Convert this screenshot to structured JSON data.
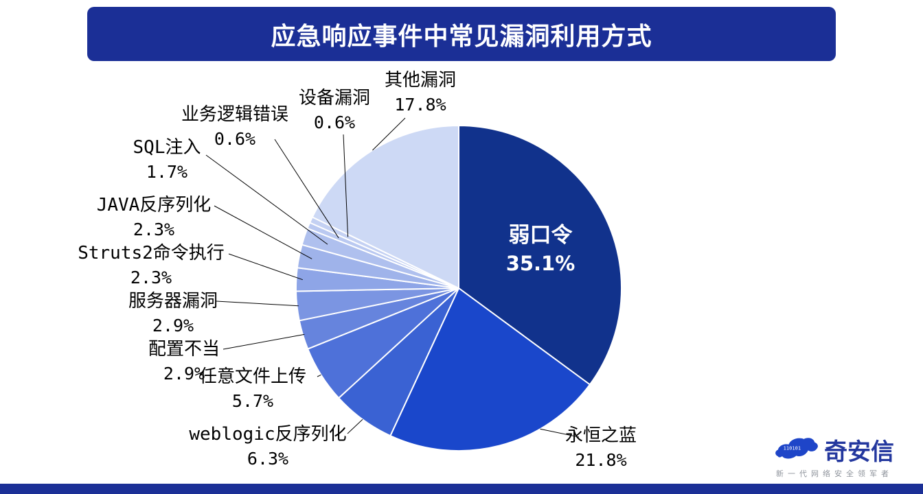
{
  "header": {
    "title": "应急响应事件中常见漏洞利用方式"
  },
  "chart_data": {
    "type": "pie",
    "title": "应急响应事件中常见漏洞利用方式",
    "unit": "percent",
    "start_angle_deg": 0,
    "direction": "clockwise",
    "legend": "none",
    "slices": [
      {
        "label": "弱口令",
        "value": 35.1,
        "display": "35.1%",
        "color": "#11328c"
      },
      {
        "label": "永恒之蓝",
        "value": 21.8,
        "display": "21.8%",
        "color": "#1a47cb"
      },
      {
        "label": "weblogic反序列化",
        "value": 6.3,
        "display": "6.3%",
        "color": "#3a62d3"
      },
      {
        "label": "任意文件上传",
        "value": 5.7,
        "display": "5.7%",
        "color": "#4e71d9"
      },
      {
        "label": "配置不当",
        "value": 2.9,
        "display": "2.9%",
        "color": "#6684dd"
      },
      {
        "label": "服务器漏洞",
        "value": 2.9,
        "display": "2.9%",
        "color": "#7b95e2"
      },
      {
        "label": "Struts2命令执行",
        "value": 2.3,
        "display": "2.3%",
        "color": "#8ea5e7"
      },
      {
        "label": "JAVA反序列化",
        "value": 2.3,
        "display": "2.3%",
        "color": "#9fb3ea"
      },
      {
        "label": "SQL注入",
        "value": 1.7,
        "display": "1.7%",
        "color": "#afc0ee"
      },
      {
        "label": "业务逻辑错误",
        "value": 0.6,
        "display": "0.6%",
        "color": "#bac9f1"
      },
      {
        "label": "设备漏洞",
        "value": 0.6,
        "display": "0.6%",
        "color": "#c4d1f3"
      },
      {
        "label": "其他漏洞",
        "value": 17.8,
        "display": "17.8%",
        "color": "#cdd9f5"
      }
    ]
  },
  "logo": {
    "brand": "奇安信",
    "tagline": "新一代网络安全领军者",
    "binary_motif": "110101"
  },
  "theme": {
    "banner_color": "#1b2f96",
    "footer_color": "#1b2f96",
    "brand_color": "#23379e",
    "tagline_color": "#8f949c",
    "tiger_color": "#1e45c8",
    "label_color": "#000000",
    "inside_label_color": "#ffffff",
    "leader_line_color": "#000000"
  }
}
